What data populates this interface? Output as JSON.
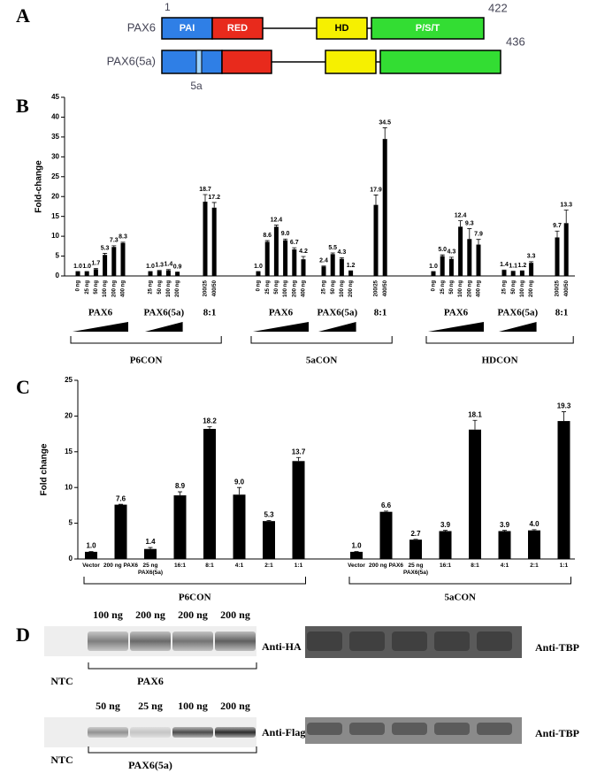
{
  "panel_a": {
    "label": "A",
    "proteins": [
      {
        "name": "PAX6",
        "start": 1,
        "end": 422,
        "domains": [
          "PAI",
          "RED",
          "HD",
          "P/S/T"
        ]
      },
      {
        "name": "PAX6(5a)",
        "end": 436,
        "insert": "5a"
      }
    ]
  },
  "chart_data": [
    {
      "type": "bar",
      "panel_label": "B",
      "y_label": "Fold-change",
      "color": "#000000",
      "ylim": [
        0,
        45
      ],
      "yticks": [
        0,
        5,
        10,
        15,
        20,
        25,
        30,
        35,
        40,
        45
      ],
      "groups": [
        {
          "name": "P6CON",
          "subgroups": [
            {
              "name": "PAX6",
              "categories": [
                "0 ng",
                "25 ng",
                "50 ng",
                "100 ng",
                "200 ng",
                "400 ng"
              ],
              "values": [
                1.0,
                1.0,
                1.7,
                5.3,
                7.3,
                8.3
              ],
              "value_labels": [
                "1.0",
                "1.0",
                "1.7",
                "5.3",
                "7.3",
                "8.3"
              ],
              "errors": [
                0.1,
                0.1,
                0.2,
                0.4,
                0.3,
                0.2
              ]
            },
            {
              "name": "PAX6(5a)",
              "categories": [
                "25 ng",
                "50 ng",
                "100 ng",
                "200 ng"
              ],
              "values": [
                1.0,
                1.3,
                1.4,
                0.9
              ],
              "value_labels": [
                "1.0",
                "1.3",
                "1.4",
                "0.9"
              ],
              "errors": [
                0.1,
                0.1,
                0.2,
                0.1
              ]
            },
            {
              "name": "8:1",
              "categories": [
                "200/25",
                "400/50"
              ],
              "values": [
                18.7,
                17.2
              ],
              "value_labels": [
                "18.7",
                "17.2"
              ],
              "errors": [
                1.8,
                1.3
              ]
            }
          ]
        },
        {
          "name": "5aCON",
          "subgroups": [
            {
              "name": "PAX6",
              "categories": [
                "0 ng",
                "25 ng",
                "50 ng",
                "100 ng",
                "200 ng",
                "400 ng"
              ],
              "values": [
                1.0,
                8.6,
                12.4,
                9.0,
                6.7,
                4.2
              ],
              "value_labels": [
                "1.0",
                "8.6",
                "12.4",
                "9.0",
                "6.7",
                "4.2"
              ],
              "errors": [
                0.1,
                0.3,
                0.4,
                0.3,
                0.4,
                0.7
              ]
            },
            {
              "name": "PAX6(5a)",
              "categories": [
                "25 ng",
                "50 ng",
                "100 ng",
                "200 ng"
              ],
              "values": [
                2.4,
                5.5,
                4.3,
                1.2
              ],
              "value_labels": [
                "2.4",
                "5.5",
                "4.3",
                "1.2"
              ],
              "errors": [
                0.1,
                0.3,
                0.3,
                0.1
              ]
            },
            {
              "name": "8:1",
              "categories": [
                "200/25",
                "400/50"
              ],
              "values": [
                17.9,
                34.5
              ],
              "value_labels": [
                "17.9",
                "34.5"
              ],
              "errors": [
                2.5,
                2.8
              ]
            }
          ]
        },
        {
          "name": "HDCON",
          "subgroups": [
            {
              "name": "PAX6",
              "categories": [
                "0 ng",
                "25 ng",
                "50 ng",
                "100 ng",
                "200 ng",
                "400 ng"
              ],
              "values": [
                1.0,
                5.0,
                4.3,
                12.4,
                9.3,
                7.9
              ],
              "value_labels": [
                "1.0",
                "5.0",
                "4.3",
                "12.4",
                "9.3",
                "7.9"
              ],
              "errors": [
                0.1,
                0.3,
                0.4,
                1.5,
                2.6,
                1.3
              ]
            },
            {
              "name": "PAX6(5a)",
              "categories": [
                "25 ng",
                "50 ng",
                "100 ng",
                "200 ng"
              ],
              "values": [
                1.4,
                1.1,
                1.2,
                3.3
              ],
              "value_labels": [
                "1.4",
                "1.1",
                "1.2",
                "3.3"
              ],
              "errors": [
                0.1,
                0.1,
                0.1,
                0.3
              ]
            },
            {
              "name": "8:1",
              "categories": [
                "200/25",
                "400/50"
              ],
              "values": [
                9.7,
                13.3
              ],
              "value_labels": [
                "9.7",
                "13.3"
              ],
              "errors": [
                1.6,
                3.3
              ]
            }
          ]
        }
      ]
    },
    {
      "type": "bar",
      "panel_label": "C",
      "y_label": "Fold change",
      "color": "#000000",
      "ylim": [
        0,
        25
      ],
      "yticks": [
        0,
        5,
        10,
        15,
        20,
        25
      ],
      "groups": [
        {
          "name": "P6CON",
          "categories": [
            "Vector",
            "200 ng PAX6",
            "25 ng PAX6(5a)",
            "16:1",
            "8:1",
            "4:1",
            "2:1",
            "1:1"
          ],
          "values": [
            1.0,
            7.6,
            1.4,
            8.9,
            18.2,
            9.0,
            5.3,
            13.7
          ],
          "value_labels": [
            "1.0",
            "7.6",
            "1.4",
            "8.9",
            "18.2",
            "9.0",
            "5.3",
            "13.7"
          ],
          "errors": [
            0.05,
            0.05,
            0.2,
            0.5,
            0.3,
            1.0,
            0.1,
            0.5
          ]
        },
        {
          "name": "5aCON",
          "categories": [
            "Vector",
            "200 ng PAX6",
            "25 ng PAX6(5a)",
            "16:1",
            "8:1",
            "4:1",
            "2:1",
            "1:1"
          ],
          "values": [
            1.0,
            6.6,
            2.7,
            3.9,
            18.1,
            3.9,
            4.0,
            19.3
          ],
          "value_labels": [
            "1.0",
            "6.6",
            "2.7",
            "3.9",
            "18.1",
            "3.9",
            "4.0",
            "19.3"
          ],
          "errors": [
            0.05,
            0.1,
            0.05,
            0.1,
            1.3,
            0.1,
            0.1,
            1.3
          ]
        }
      ]
    }
  ],
  "panel_d": {
    "label": "D",
    "blots": [
      {
        "amounts": [
          "100 ng",
          "200 ng",
          "200 ng",
          "200 ng"
        ],
        "antibody": "Anti-HA",
        "control": "NTC",
        "construct": "PAX6",
        "loading_control": "Anti-TBP"
      },
      {
        "amounts": [
          "50 ng",
          "25 ng",
          "100 ng",
          "200 ng"
        ],
        "antibody": "Anti-Flag",
        "control": "NTC",
        "construct": "PAX6(5a)",
        "loading_control": "Anti-TBP"
      }
    ]
  }
}
